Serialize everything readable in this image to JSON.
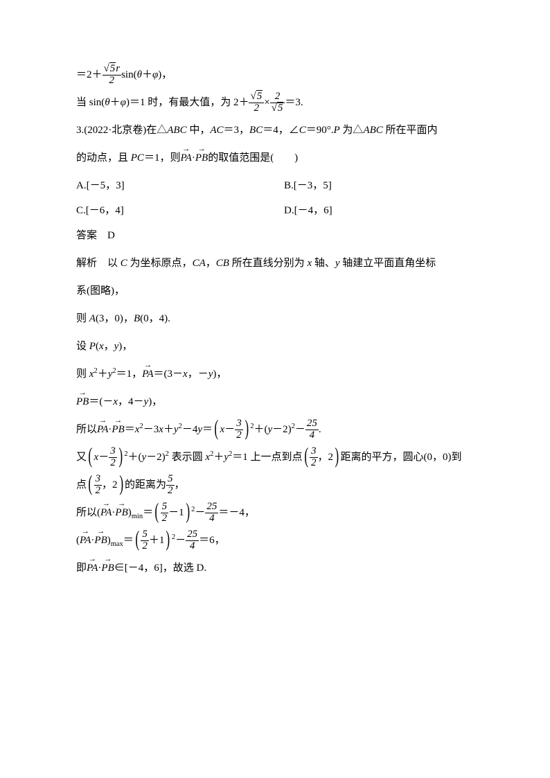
{
  "eq1_prefix": "＝2＋",
  "sqrt5": "5",
  "r": "r",
  "two": "2",
  "sin_tp": "sin(",
  "theta": "θ",
  "plus": "＋",
  "phi": "φ",
  "close_comma": ")，",
  "l2_a": "当 sin(",
  "l2_b": ")＝1 时，有最大值，为 2＋",
  "l2_mid_times": "×",
  "l2_eq3": "＝3.",
  "q3_a": "3.(2022·北京卷)在△",
  "abc": "ABC",
  "q3_b": " 中，",
  "ac": "AC",
  "q3_c": "＝3，",
  "bc": "BC",
  "q3_d": "＝4，∠",
  "C": "C",
  "q3_e": "＝90°.",
  "P": "P",
  "q3_f": " 为△",
  "q3_g": " 所在平面内",
  "q3_h": "的动点，且 ",
  "pc": "PC",
  "q3_i": "＝1，则",
  "pa": "PA",
  "pb": "PB",
  "dot": "·",
  "q3_j": "的取值范围是(　　)",
  "optA": "A.[－5，3]",
  "optB": "B.[－3，5]",
  "optC": "C.[－6，4]",
  "optD": "D.[－4，6]",
  "ans_label": "答案",
  "ans_val": "D",
  "exp_label": "解析",
  "exp1_a": "以 ",
  "exp1_b": " 为坐标原点，",
  "ca": "CA",
  "cb": "CB",
  "exp1_c": "，",
  "exp1_d": " 所在直线分别为 ",
  "x": "x",
  "exp1_e": " 轴、",
  "y": "y",
  "exp1_f": " 轴建立平面直角坐标",
  "exp1_g": "系(图略)，",
  "exp2_a": "则 ",
  "A": "A",
  "exp2_b": "(3，0)，",
  "B": "B",
  "exp2_c": "(0，4).",
  "exp3_a": "设 ",
  "exp3_b": "(",
  "exp3_c": "，",
  "exp3_d": ")，",
  "exp4_a": "则 ",
  "exp4_b": "＝1，",
  "exp4_c": "＝(3－",
  "exp4_d": "，－",
  "exp4_e": ")，",
  "exp5_a": "＝(－",
  "exp5_b": "，4－",
  "exp5_c": ")，",
  "exp6_a": "所以",
  "exp6_b": "＝",
  "exp6_c": "－3",
  "exp6_d": "－4",
  "exp6_e": "＝",
  "three": "3",
  "exp6_f": "＋(",
  "exp6_g": "－2)",
  "exp6_h": "－",
  "tw5": "25",
  "four": "4",
  "period": ".",
  "exp7_a": "又",
  "exp7_b": "表示圆 ",
  "exp7_c": "＝1 上一点到点",
  "exp7_d": "，2",
  "exp7_e": "距离的平方，圆心(0，0)到",
  "exp8_a": "点",
  "exp8_b": "的距离为",
  "five": "5",
  "comma": "，",
  "exp9_a": "所以(",
  "min": "min",
  "exp9_b": "＝",
  "minus1": "－1",
  "exp9_c": "－",
  "exp9_d": "＝－4，",
  "exp10_a": "(",
  "max": "max",
  "plus1": "＋1",
  "exp10_b": "＝6，",
  "exp11_a": "即",
  "exp11_b": "∈[－4，6]，故选 D."
}
